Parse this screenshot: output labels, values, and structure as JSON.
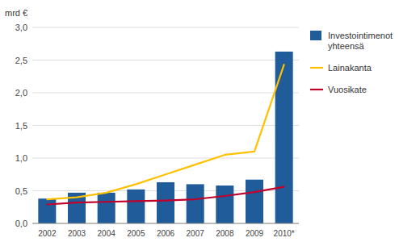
{
  "chart_data": {
    "type": "bar",
    "ylabel": "mrd €",
    "categories": [
      "2002",
      "2003",
      "2004",
      "2005",
      "2006",
      "2007",
      "2008",
      "2009",
      "2010*"
    ],
    "series": [
      {
        "name": "Investointimenot\nyhteensä",
        "type": "bar",
        "color": "#1F5C99",
        "values": [
          0.38,
          0.47,
          0.47,
          0.52,
          0.63,
          0.6,
          0.58,
          0.67,
          2.63
        ]
      },
      {
        "name": "Lainakanta",
        "type": "line",
        "color": "#FFC000",
        "values": [
          0.37,
          0.4,
          0.47,
          0.6,
          0.75,
          0.9,
          1.05,
          1.1,
          2.43
        ]
      },
      {
        "name": "Vuosikate",
        "type": "line",
        "color": "#C0002A",
        "values": [
          0.29,
          0.32,
          0.33,
          0.34,
          0.35,
          0.37,
          0.42,
          0.48,
          0.56
        ]
      }
    ],
    "ylim": [
      0,
      3.0
    ],
    "yticks": [
      {
        "value": 0.0,
        "label": "0,0"
      },
      {
        "value": 0.5,
        "label": "0,5"
      },
      {
        "value": 1.0,
        "label": "1,0"
      },
      {
        "value": 1.5,
        "label": "1,5"
      },
      {
        "value": 2.0,
        "label": "2,0"
      },
      {
        "value": 2.5,
        "label": "2,5"
      },
      {
        "value": 3.0,
        "label": "3,0"
      }
    ],
    "grid": true,
    "legend": "right"
  }
}
